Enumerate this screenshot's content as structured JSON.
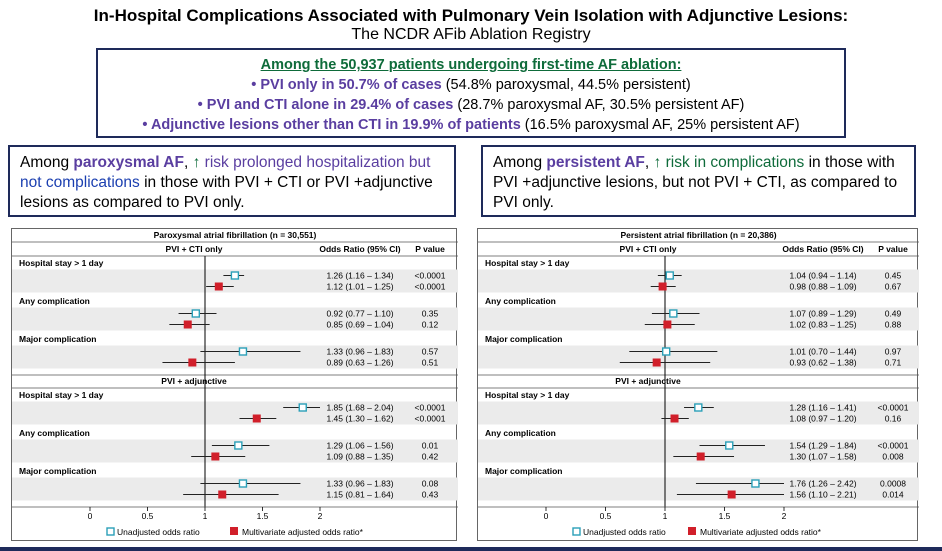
{
  "header": {
    "title": "In-Hospital Complications Associated with Pulmonary Vein Isolation with Adjunctive Lesions:",
    "subtitle": "The NCDR AFib Ablation Registry"
  },
  "summary": {
    "heading": "Among the 50,937 patients undergoing first-time AF ablation:",
    "lines": [
      {
        "bullet": "•",
        "strong": "PVI only in 50.7% of cases",
        "rest": " (54.8% paroxysmal, 44.5% persistent)"
      },
      {
        "bullet": "•",
        "strong": "PVI and CTI alone in 29.4% of cases",
        "rest": " (28.7% paroxysmal AF, 30.5% persistent AF)"
      },
      {
        "bullet": "•",
        "strong": "Adjunctive lesions other than CTI in 19.9% of patients",
        "rest": " (16.5% paroxysmal AF, 25% persistent AF)"
      }
    ]
  },
  "callouts": {
    "left": {
      "p1": "Among ",
      "p2": "paroxysmal AF",
      "p3": ", ",
      "arrow": "↑",
      "p4": " risk prolonged hospitalization but",
      "p5": "not complications",
      "p6": " in those with PVI + CTI or PVI +adjunctive lesions as compared to PVI only."
    },
    "right": {
      "p1": "Among ",
      "p2": "persistent AF",
      "p3": ", ",
      "arrow": "↑",
      "p4": " risk in complications",
      "p5": " in those with PVI +adjunctive lesions, but not PVI + CTI, as compared to PVI only."
    }
  },
  "colors": {
    "unadjusted": "#2aa0b8",
    "adjusted": "#d11f2a",
    "border": "#1e2a5a",
    "purple": "#5a3ea0",
    "green": "#0e6b3a"
  },
  "chart_data": [
    {
      "type": "forest",
      "title": "Paroxysmal atrial fibrillation (n = 30,551)",
      "col_or": "Odds Ratio (95% CI)",
      "col_p": "P value",
      "xlim": [
        0,
        2
      ],
      "ticks": [
        0,
        0.5,
        1,
        1.5,
        2
      ],
      "tick_labels": [
        "0",
        "0.5",
        "1",
        "1.5",
        "2"
      ],
      "reference": 1,
      "legend": [
        "Unadjusted odds ratio",
        "Multivariate adjusted odds ratio*"
      ],
      "sections": [
        {
          "label": "PVI + CTI only",
          "groups": [
            {
              "label": "Hospital stay > 1 day",
              "rows": [
                {
                  "kind": "unadjusted",
                  "or": 1.26,
                  "lo": 1.16,
                  "hi": 1.34,
                  "text": "1.26 (1.16 – 1.34)",
                  "p": "<0.0001"
                },
                {
                  "kind": "adjusted",
                  "or": 1.12,
                  "lo": 1.01,
                  "hi": 1.25,
                  "text": "1.12 (1.01 – 1.25)",
                  "p": "<0.0001"
                }
              ]
            },
            {
              "label": "Any complication",
              "rows": [
                {
                  "kind": "unadjusted",
                  "or": 0.92,
                  "lo": 0.77,
                  "hi": 1.1,
                  "text": "0.92 (0.77 – 1.10)",
                  "p": "0.35"
                },
                {
                  "kind": "adjusted",
                  "or": 0.85,
                  "lo": 0.69,
                  "hi": 1.04,
                  "text": "0.85 (0.69 – 1.04)",
                  "p": "0.12"
                }
              ]
            },
            {
              "label": "Major complication",
              "rows": [
                {
                  "kind": "unadjusted",
                  "or": 1.33,
                  "lo": 0.96,
                  "hi": 1.83,
                  "text": "1.33 (0.96 – 1.83)",
                  "p": "0.57"
                },
                {
                  "kind": "adjusted",
                  "or": 0.89,
                  "lo": 0.63,
                  "hi": 1.26,
                  "text": "0.89 (0.63 – 1.26)",
                  "p": "0.51"
                }
              ]
            }
          ]
        },
        {
          "label": "PVI + adjunctive",
          "groups": [
            {
              "label": "Hospital stay > 1 day",
              "rows": [
                {
                  "kind": "unadjusted",
                  "or": 1.85,
                  "lo": 1.68,
                  "hi": 2.04,
                  "text": "1.85 (1.68 – 2.04)",
                  "p": "<0.0001"
                },
                {
                  "kind": "adjusted",
                  "or": 1.45,
                  "lo": 1.3,
                  "hi": 1.62,
                  "text": "1.45 (1.30 – 1.62)",
                  "p": "<0.0001"
                }
              ]
            },
            {
              "label": "Any complication",
              "rows": [
                {
                  "kind": "unadjusted",
                  "or": 1.29,
                  "lo": 1.06,
                  "hi": 1.56,
                  "text": "1.29 (1.06 – 1.56)",
                  "p": "0.01"
                },
                {
                  "kind": "adjusted",
                  "or": 1.09,
                  "lo": 0.88,
                  "hi": 1.35,
                  "text": "1.09 (0.88 – 1.35)",
                  "p": "0.42"
                }
              ]
            },
            {
              "label": "Major complication",
              "rows": [
                {
                  "kind": "unadjusted",
                  "or": 1.33,
                  "lo": 0.96,
                  "hi": 1.83,
                  "text": "1.33 (0.96 – 1.83)",
                  "p": "0.08"
                },
                {
                  "kind": "adjusted",
                  "or": 1.15,
                  "lo": 0.81,
                  "hi": 1.64,
                  "text": "1.15 (0.81 – 1.64)",
                  "p": "0.43"
                }
              ]
            }
          ]
        }
      ]
    },
    {
      "type": "forest",
      "title": "Persistent atrial fibrillation (n = 20,386)",
      "col_or": "Odds Ratio (95% CI)",
      "col_p": "P value",
      "xlim": [
        0,
        2
      ],
      "ticks": [
        0,
        0.5,
        1,
        1.5,
        2
      ],
      "tick_labels": [
        "0",
        "0.5",
        "1",
        "1.5",
        "2"
      ],
      "reference": 1,
      "legend": [
        "Unadjusted odds ratio",
        "Multivariate adjusted odds ratio*"
      ],
      "sections": [
        {
          "label": "PVI + CTI only",
          "groups": [
            {
              "label": "Hospital stay > 1 day",
              "rows": [
                {
                  "kind": "unadjusted",
                  "or": 1.04,
                  "lo": 0.94,
                  "hi": 1.14,
                  "text": "1.04 (0.94 – 1.14)",
                  "p": "0.45"
                },
                {
                  "kind": "adjusted",
                  "or": 0.98,
                  "lo": 0.88,
                  "hi": 1.09,
                  "text": "0.98 (0.88 – 1.09)",
                  "p": "0.67"
                }
              ]
            },
            {
              "label": "Any complication",
              "rows": [
                {
                  "kind": "unadjusted",
                  "or": 1.07,
                  "lo": 0.89,
                  "hi": 1.29,
                  "text": "1.07 (0.89 – 1.29)",
                  "p": "0.49"
                },
                {
                  "kind": "adjusted",
                  "or": 1.02,
                  "lo": 0.83,
                  "hi": 1.25,
                  "text": "1.02 (0.83 – 1.25)",
                  "p": "0.88"
                }
              ]
            },
            {
              "label": "Major complication",
              "rows": [
                {
                  "kind": "unadjusted",
                  "or": 1.01,
                  "lo": 0.7,
                  "hi": 1.44,
                  "text": "1.01 (0.70 – 1.44)",
                  "p": "0.97"
                },
                {
                  "kind": "adjusted",
                  "or": 0.93,
                  "lo": 0.62,
                  "hi": 1.38,
                  "text": "0.93 (0.62 – 1.38)",
                  "p": "0.71"
                }
              ]
            }
          ]
        },
        {
          "label": "PVI + adjunctive",
          "groups": [
            {
              "label": "Hospital stay > 1 day",
              "rows": [
                {
                  "kind": "unadjusted",
                  "or": 1.28,
                  "lo": 1.16,
                  "hi": 1.41,
                  "text": "1.28 (1.16 – 1.41)",
                  "p": "<0.0001"
                },
                {
                  "kind": "adjusted",
                  "or": 1.08,
                  "lo": 0.97,
                  "hi": 1.2,
                  "text": "1.08 (0.97 – 1.20)",
                  "p": "0.16"
                }
              ]
            },
            {
              "label": "Any complication",
              "rows": [
                {
                  "kind": "unadjusted",
                  "or": 1.54,
                  "lo": 1.29,
                  "hi": 1.84,
                  "text": "1.54 (1.29 – 1.84)",
                  "p": "<0.0001"
                },
                {
                  "kind": "adjusted",
                  "or": 1.3,
                  "lo": 1.07,
                  "hi": 1.58,
                  "text": "1.30 (1.07 – 1.58)",
                  "p": "0.008"
                }
              ]
            },
            {
              "label": "Major complication",
              "rows": [
                {
                  "kind": "unadjusted",
                  "or": 1.76,
                  "lo": 1.26,
                  "hi": 2.42,
                  "text": "1.76 (1.26 – 2.42)",
                  "p": "0.0008"
                },
                {
                  "kind": "adjusted",
                  "or": 1.56,
                  "lo": 1.1,
                  "hi": 2.21,
                  "text": "1.56 (1.10 – 2.21)",
                  "p": "0.014"
                }
              ]
            }
          ]
        }
      ]
    }
  ]
}
